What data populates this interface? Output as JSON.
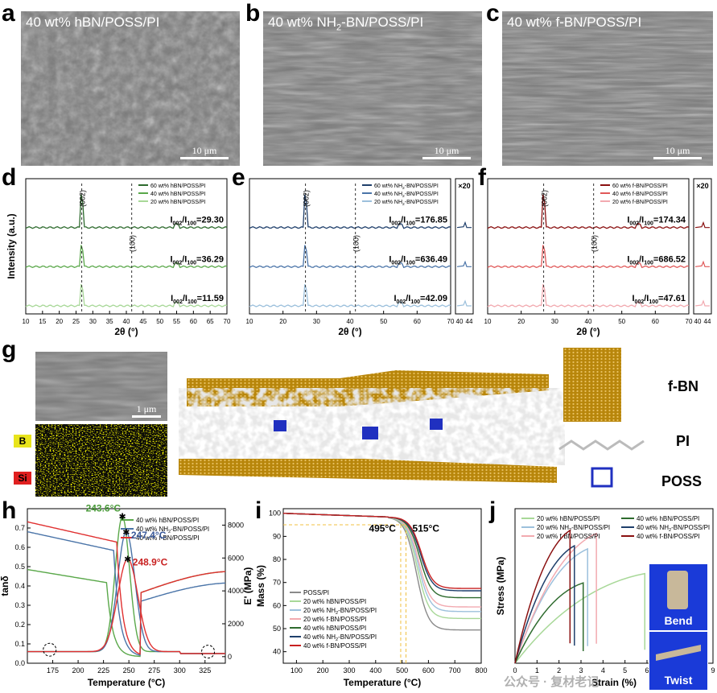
{
  "panels": {
    "a": {
      "letter": "a",
      "title": "40 wt% hBN/POSS/PI",
      "scale": "10 μm"
    },
    "b": {
      "letter": "b",
      "title_pre": "40 wt% NH",
      "title_sub": "2",
      "title_post": "-BN/POSS/PI",
      "scale": "10 μm"
    },
    "c": {
      "letter": "c",
      "title": "40 wt% f-BN/POSS/PI",
      "scale": "10 μm"
    },
    "d": {
      "letter": "d"
    },
    "e": {
      "letter": "e"
    },
    "f": {
      "letter": "f"
    },
    "g": {
      "letter": "g",
      "scale": "1 μm",
      "map_b": "B",
      "map_si": "Si",
      "label_fbn": "f-BN",
      "label_pi": "PI",
      "label_poss": "POSS"
    },
    "h": {
      "letter": "h"
    },
    "i": {
      "letter": "i"
    },
    "j": {
      "letter": "j",
      "bend": "Bend",
      "twist": "Twist"
    }
  },
  "watermark": "公众号 · 复材老记",
  "colors": {
    "green_dark": "#2e6b2e",
    "green_mid": "#5aa84a",
    "green_light": "#a8d898",
    "blue_dark": "#1f3f6b",
    "blue_mid": "#4a74a8",
    "blue_light": "#9cc0dc",
    "red_dark": "#8a1010",
    "red_mid": "#e05858",
    "red_light": "#f2aab0",
    "bn_gold": "#b8860b"
  },
  "chart_data": [
    {
      "id": "d",
      "type": "line",
      "xlabel": "2θ (°)",
      "ylabel": "Intensity (a.u.)",
      "xlim": [
        10,
        70
      ],
      "xticks": [
        10,
        15,
        20,
        25,
        30,
        35,
        40,
        45,
        50,
        55,
        60,
        65,
        70
      ],
      "peak_labels": [
        "(002)",
        "(100)"
      ],
      "peak_positions": [
        26.7,
        41.6
      ],
      "series": [
        {
          "name": "60 wt% hBN/POSS/PI",
          "ratio": "I002/I100=29.30",
          "ratio_value": 29.3,
          "color": "#2e6b2e"
        },
        {
          "name": "40 wt% hBN/POSS/PI",
          "ratio": "I002/I100=36.29",
          "ratio_value": 36.29,
          "color": "#5aa84a"
        },
        {
          "name": "20 wt% hBN/POSS/PI",
          "ratio": "I002/I100=11.59",
          "ratio_value": 11.59,
          "color": "#a8d898"
        }
      ]
    },
    {
      "id": "e",
      "type": "line",
      "xlabel": "2θ (°)",
      "ylabel": "",
      "xlim": [
        10,
        70
      ],
      "xticks": [
        10,
        20,
        30,
        40,
        50,
        60,
        70
      ],
      "inset_label": "×20",
      "inset_ticks": [
        40,
        44
      ],
      "peak_labels": [
        "(002)",
        "(100)"
      ],
      "peak_positions": [
        26.7,
        41.6
      ],
      "series": [
        {
          "name": "60 wt% NH2-BN/POSS/PI",
          "ratio": "I002/I100=176.85",
          "ratio_value": 176.85,
          "color": "#1f3f6b"
        },
        {
          "name": "40 wt% NH2-BN/POSS/PI",
          "ratio": "I002/I100=636.49",
          "ratio_value": 636.49,
          "color": "#4a74a8"
        },
        {
          "name": "20 wt% NH2-BN/POSS/PI",
          "ratio": "I002/I100=42.09",
          "ratio_value": 42.09,
          "color": "#9cc0dc"
        }
      ]
    },
    {
      "id": "f",
      "type": "line",
      "xlabel": "2θ (°)",
      "ylabel": "",
      "xlim": [
        10,
        70
      ],
      "xticks": [
        10,
        20,
        30,
        40,
        50,
        60,
        70
      ],
      "inset_label": "×20",
      "inset_ticks": [
        40,
        44
      ],
      "peak_labels": [
        "(002)",
        "(100)"
      ],
      "peak_positions": [
        26.7,
        41.6
      ],
      "series": [
        {
          "name": "60 wt% f-BN/POSS/PI",
          "ratio": "I002/I100=174.34",
          "ratio_value": 174.34,
          "color": "#8a1010"
        },
        {
          "name": "40 wt% f-BN/POSS/PI",
          "ratio": "I002/I100=686.52",
          "ratio_value": 686.52,
          "color": "#e05858"
        },
        {
          "name": "20 wt% f-BN/POSS/PI",
          "ratio": "I002/I100=47.61",
          "ratio_value": 47.61,
          "color": "#f2aab0"
        }
      ]
    },
    {
      "id": "h",
      "type": "line",
      "xlabel": "Temperature (°C)",
      "ylabel": "tanδ",
      "y2label": "E' (MPa)",
      "xlim": [
        150,
        345
      ],
      "xticks": [
        175,
        200,
        225,
        250,
        275,
        300,
        325
      ],
      "ylim": [
        0,
        0.8
      ],
      "yticks": [
        0.0,
        0.1,
        0.2,
        0.3,
        0.4,
        0.5,
        0.6,
        0.7
      ],
      "y2lim": [
        -400,
        9000
      ],
      "y2ticks": [
        0,
        2000,
        4000,
        6000,
        8000
      ],
      "annotations": [
        {
          "text": "243.6°C",
          "x": 243.6,
          "color": "#4a9a3a"
        },
        {
          "text": "247.4°C",
          "x": 247.4,
          "color": "#3a5a9a"
        },
        {
          "text": "248.9°C",
          "x": 248.9,
          "color": "#c82020"
        }
      ],
      "series": [
        {
          "name": "40 wt% hBN/POSS/PI",
          "color": "#5aa84a",
          "tan_peak_x": 243.6,
          "tan_peak": 0.76
        },
        {
          "name": "40 wt% NH2-BN/POSS/PI",
          "color": "#4a74a8",
          "tan_peak_x": 247.4,
          "tan_peak": 0.68
        },
        {
          "name": "40 wt% f-BN/POSS/PI",
          "color": "#e03030",
          "tan_peak_x": 248.9,
          "tan_peak": 0.54
        }
      ]
    },
    {
      "id": "i",
      "type": "line",
      "xlabel": "Temperature (°C)",
      "ylabel": "Mass (%)",
      "xlim": [
        50,
        800
      ],
      "xticks": [
        100,
        200,
        300,
        400,
        500,
        600,
        700,
        800
      ],
      "ylim": [
        35,
        102
      ],
      "yticks": [
        40,
        50,
        60,
        70,
        80,
        90,
        100
      ],
      "annotations": [
        {
          "text": "495°C",
          "x": 495
        },
        {
          "text": "515°C",
          "x": 515
        }
      ],
      "series": [
        {
          "name": "POSS/PI",
          "color": "#8a8a8a",
          "residual": 51
        },
        {
          "name": "20 wt% hBN/POSS/PI",
          "color": "#a8d898",
          "residual": 56
        },
        {
          "name": "20 wt% NH2-BN/POSS/PI",
          "color": "#9cc0dc",
          "residual": 59
        },
        {
          "name": "20 wt% f-BN/POSS/PI",
          "color": "#f2aab0",
          "residual": 61
        },
        {
          "name": "40 wt% hBN/POSS/PI",
          "color": "#2e6b2e",
          "residual": 65
        },
        {
          "name": "40 wt% NH2-BN/POSS/PI",
          "color": "#1f3f6b",
          "residual": 68
        },
        {
          "name": "40 wt% f-BN/POSS/PI",
          "color": "#c82020",
          "residual": 69
        }
      ]
    },
    {
      "id": "j",
      "type": "line",
      "xlabel": "Strain (%)",
      "ylabel": "Stress (MPa)",
      "xlim": [
        0,
        9
      ],
      "xticks": [
        0,
        1,
        2,
        3,
        4,
        5,
        6,
        7,
        8,
        9
      ],
      "series": [
        {
          "name": "20 wt% hBN/POSS/PI",
          "color": "#a8d898",
          "strain": 5.9,
          "stress": 29
        },
        {
          "name": "20 wt% NH2-BN/POSS/PI",
          "color": "#9cc0dc",
          "strain": 3.3,
          "stress": 37
        },
        {
          "name": "20 wt% f-BN/POSS/PI",
          "color": "#f2aab0",
          "strain": 3.7,
          "stress": 42
        },
        {
          "name": "40 wt% hBN/POSS/PI",
          "color": "#2e6b2e",
          "strain": 3.1,
          "stress": 26
        },
        {
          "name": "40 wt% NH2-BN/POSS/PI",
          "color": "#1f3f6b",
          "strain": 2.7,
          "stress": 38
        },
        {
          "name": "40 wt% f-BN/POSS/PI",
          "color": "#8a1010",
          "strain": 2.5,
          "stress": 43
        }
      ]
    }
  ]
}
